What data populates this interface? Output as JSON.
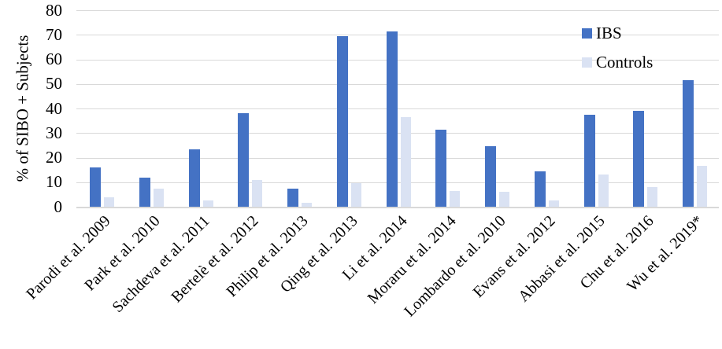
{
  "chart_data": {
    "type": "bar",
    "title": "",
    "xlabel": "",
    "ylabel": "% of SIBO + Subjects",
    "ylim": [
      0,
      80
    ],
    "yticks": [
      0,
      10,
      20,
      30,
      40,
      50,
      60,
      70,
      80
    ],
    "grid": true,
    "legend_position": "top-right",
    "categories": [
      "Parodi et al. 2009",
      "Park et al. 2010",
      "Sachdeva et al. 2011",
      "Bertelè et al. 2012",
      "Philip et al. 2013",
      "Qing et al. 2013",
      "Li et al. 2014",
      "Moraru et al. 2014",
      "Lombardo et al. 2010",
      "Evans et al. 2012",
      "Abbasi et al. 2015",
      "Chu et al. 2016",
      "Wu et al. 2019*"
    ],
    "series": [
      {
        "name": "IBS",
        "color": "#4472C4",
        "values": [
          16,
          12,
          23.5,
          38,
          7.5,
          69.5,
          71.5,
          31.5,
          24.5,
          14.5,
          37.5,
          39,
          51.5
        ]
      },
      {
        "name": "Controls",
        "color": "#DAE2F3",
        "values": [
          4,
          7.5,
          2.5,
          11,
          1.5,
          9.5,
          36.5,
          6.5,
          6,
          2.5,
          13,
          8,
          16.5
        ]
      }
    ]
  },
  "colors": {
    "gridline": "#D9D9D9",
    "axis_line": "#D9D9D9",
    "text": "#000000",
    "background": "#FFFFFF"
  }
}
